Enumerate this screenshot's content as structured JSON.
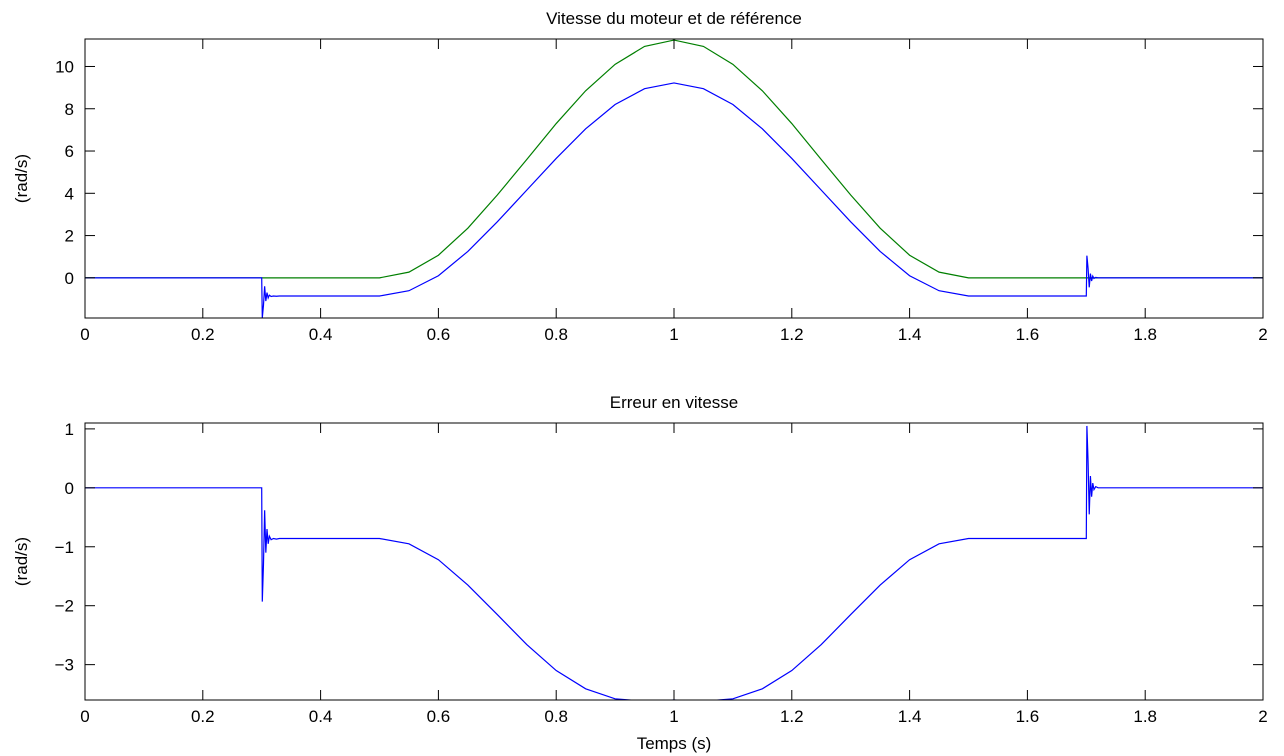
{
  "chart_data": [
    {
      "type": "line",
      "title": "Vitesse du moteur et de référence",
      "xlabel": "",
      "ylabel": "(rad/s)",
      "xlim": [
        0,
        2
      ],
      "ylim": [
        -1.9,
        11.3
      ],
      "x_ticks": [
        "0",
        "0.2",
        "0.4",
        "0.6",
        "0.8",
        "1",
        "1.2",
        "1.4",
        "1.6",
        "1.8",
        "2"
      ],
      "y_ticks": [
        "0",
        "2",
        "4",
        "6",
        "8",
        "10"
      ],
      "grid": false,
      "series": [
        {
          "color": "#007f00",
          "x": [
            0,
            0.5,
            0.55,
            0.6,
            0.65,
            0.7,
            0.75,
            0.8,
            0.85,
            0.9,
            0.95,
            1.0,
            1.05,
            1.1,
            1.15,
            1.2,
            1.25,
            1.3,
            1.35,
            1.4,
            1.45,
            1.5,
            2.0
          ],
          "y": [
            0,
            0,
            0.27,
            1.07,
            2.35,
            3.92,
            5.6,
            7.3,
            8.85,
            10.1,
            10.95,
            11.25,
            10.95,
            10.1,
            8.85,
            7.3,
            5.6,
            3.92,
            2.35,
            1.07,
            0.27,
            0,
            0
          ]
        },
        {
          "color": "#0000ff",
          "x": [
            0,
            0.3,
            0.301,
            0.303,
            0.305,
            0.307,
            0.309,
            0.311,
            0.313,
            0.316,
            0.32,
            0.325,
            0.33,
            0.34,
            0.5,
            0.55,
            0.6,
            0.65,
            0.7,
            0.75,
            0.8,
            0.85,
            0.9,
            0.95,
            1.0,
            1.05,
            1.1,
            1.15,
            1.2,
            1.25,
            1.3,
            1.35,
            1.4,
            1.45,
            1.5,
            1.7,
            1.701,
            1.703,
            1.705,
            1.707,
            1.709,
            1.711,
            1.713,
            1.716,
            1.72,
            1.725,
            1.73,
            1.74,
            2.0
          ],
          "y": [
            0,
            0,
            -1.9,
            -1.3,
            -0.4,
            -1.1,
            -0.7,
            -0.95,
            -0.82,
            -0.88,
            -0.86,
            -0.87,
            -0.86,
            -0.86,
            -0.86,
            -0.61,
            0.1,
            1.25,
            2.65,
            4.15,
            5.65,
            7.05,
            8.2,
            8.95,
            9.22,
            8.95,
            8.2,
            7.05,
            5.65,
            4.15,
            2.65,
            1.25,
            0.1,
            -0.61,
            -0.86,
            -0.86,
            1.05,
            0.45,
            -0.45,
            0.2,
            -0.15,
            0.08,
            -0.03,
            0.02,
            0,
            0,
            0,
            0,
            0
          ]
        }
      ]
    },
    {
      "type": "line",
      "title": "Erreur en vitesse",
      "xlabel": "Temps (s)",
      "ylabel": "(rad/s)",
      "xlim": [
        0,
        2
      ],
      "ylim": [
        -3.6,
        1.1
      ],
      "x_ticks": [
        "0",
        "0.2",
        "0.4",
        "0.6",
        "0.8",
        "1",
        "1.2",
        "1.4",
        "1.6",
        "1.8",
        "2"
      ],
      "y_ticks": [
        "1",
        "0",
        "−1",
        "−2",
        "−3"
      ],
      "grid": false,
      "series": [
        {
          "color": "#0000ff",
          "x": [
            0,
            0.3,
            0.301,
            0.303,
            0.305,
            0.307,
            0.309,
            0.311,
            0.313,
            0.316,
            0.32,
            0.325,
            0.33,
            0.34,
            0.5,
            0.55,
            0.6,
            0.65,
            0.7,
            0.75,
            0.8,
            0.85,
            0.9,
            0.95,
            1.0,
            1.05,
            1.1,
            1.15,
            1.2,
            1.25,
            1.3,
            1.35,
            1.4,
            1.45,
            1.5,
            1.7,
            1.701,
            1.703,
            1.705,
            1.707,
            1.709,
            1.711,
            1.713,
            1.716,
            1.72,
            1.725,
            1.73,
            1.74,
            2.0
          ],
          "y": [
            0,
            0,
            -1.93,
            -1.3,
            -0.38,
            -1.1,
            -0.7,
            -0.95,
            -0.82,
            -0.88,
            -0.86,
            -0.87,
            -0.86,
            -0.86,
            -0.86,
            -0.95,
            -1.22,
            -1.65,
            -2.15,
            -2.66,
            -3.1,
            -3.41,
            -3.58,
            -3.62,
            -3.6,
            -3.62,
            -3.58,
            -3.41,
            -3.1,
            -2.66,
            -2.15,
            -1.65,
            -1.22,
            -0.95,
            -0.86,
            -0.86,
            1.05,
            0.45,
            -0.45,
            0.2,
            -0.15,
            0.08,
            -0.03,
            0.02,
            0,
            0,
            0,
            0,
            0
          ]
        }
      ]
    }
  ]
}
